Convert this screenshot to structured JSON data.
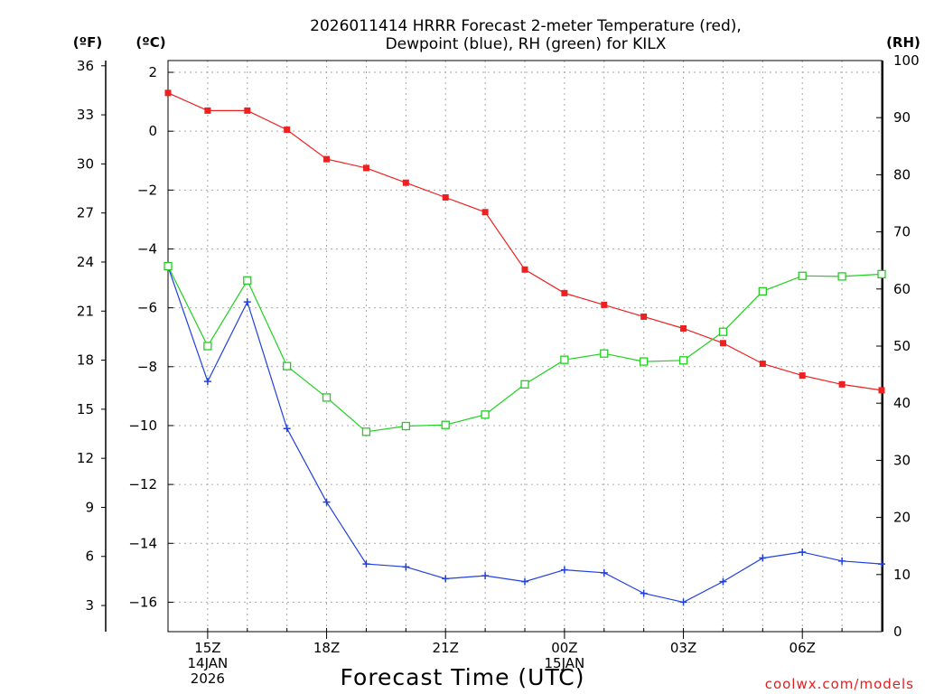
{
  "chart_data": {
    "type": "line",
    "title": [
      "2026011414 HRRR Forecast 2-meter Temperature (red),",
      "Dewpoint (blue), RH (green) for KILX"
    ],
    "xlabel": "Forecast Time (UTC)",
    "credit": "coolwx.com/models",
    "units": {
      "fahrenheit": "(ºF)",
      "celsius": "(ºC)",
      "rh": "(RH)"
    },
    "x_hours_from_14z": [
      0,
      1,
      2,
      3,
      4,
      5,
      6,
      7,
      8,
      9,
      10,
      11,
      12,
      13,
      14,
      15,
      16,
      17,
      18
    ],
    "x_ticks": [
      {
        "hour": 1,
        "lines": [
          "15Z",
          "14JAN",
          "2026"
        ]
      },
      {
        "hour": 4,
        "lines": [
          "18Z"
        ]
      },
      {
        "hour": 7,
        "lines": [
          "21Z"
        ]
      },
      {
        "hour": 10,
        "lines": [
          "00Z",
          "15JAN"
        ]
      },
      {
        "hour": 13,
        "lines": [
          "03Z"
        ]
      },
      {
        "hour": 16,
        "lines": [
          "06Z"
        ]
      }
    ],
    "ylim_celsius": [
      -17,
      2.4
    ],
    "ylim_rh": [
      0,
      100
    ],
    "yticks_fahrenheit": [
      "3",
      "6",
      "9",
      "12",
      "15",
      "18",
      "21",
      "24",
      "27",
      "30",
      "33",
      "36"
    ],
    "yticks_celsius": [
      "−16",
      "−14",
      "−12",
      "−10",
      "−8",
      "−6",
      "−4",
      "−2",
      "0",
      "2"
    ],
    "yticks_rh": [
      "0",
      "10",
      "20",
      "30",
      "40",
      "50",
      "60",
      "70",
      "80",
      "90",
      "100"
    ],
    "series": [
      {
        "name": "2-meter Temperature",
        "axis": "celsius",
        "color": "#ee2020",
        "marker": "filled-square",
        "values": [
          1.3,
          0.7,
          0.7,
          0.05,
          -0.95,
          -1.25,
          -1.75,
          -2.25,
          -2.75,
          -4.7,
          -5.5,
          -5.9,
          -6.3,
          -6.7,
          -7.2,
          -7.9,
          -8.3,
          -8.6,
          -8.8
        ]
      },
      {
        "name": "Dewpoint",
        "axis": "celsius",
        "color": "#2040e0",
        "marker": "plus",
        "values": [
          -4.6,
          -8.5,
          -5.8,
          -10.1,
          -12.6,
          -14.7,
          -14.8,
          -15.2,
          -15.1,
          -15.3,
          -14.9,
          -15.0,
          -15.7,
          -16.0,
          -15.3,
          -14.5,
          -14.3,
          -14.6,
          -14.7
        ]
      },
      {
        "name": "RH",
        "axis": "rh",
        "color": "#20d020",
        "marker": "open-square",
        "values": [
          64,
          50,
          61.5,
          46.5,
          41,
          35,
          36,
          36.2,
          38,
          43.3,
          47.6,
          48.7,
          47.3,
          47.5,
          52.5,
          59.6,
          62.3,
          62.2,
          62.6
        ]
      }
    ]
  }
}
